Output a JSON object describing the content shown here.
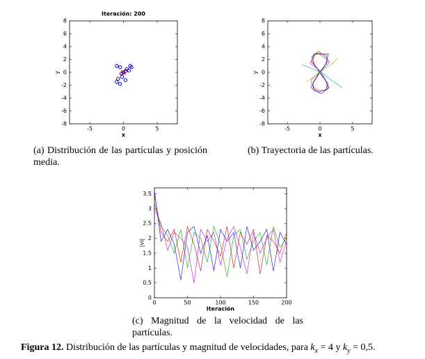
{
  "chart_data": [
    {
      "type": "scatter",
      "title": "Iteración: 200",
      "xlabel": "x",
      "ylabel": "y",
      "xlim": [
        -8,
        8
      ],
      "ylim": [
        -8,
        8
      ],
      "xticks": [
        -5,
        0,
        5
      ],
      "yticks": [
        -8,
        -6,
        -4,
        -2,
        0,
        2,
        4,
        6,
        8
      ],
      "series": [
        {
          "color": "#0000cc",
          "marker": "o",
          "x": [
            -1,
            -0.5,
            1,
            1.2,
            0.5,
            0,
            -0.3,
            0.3,
            -0.8,
            -1,
            -0.5,
            0.3,
            -0.2,
            0.8
          ],
          "values": [
            1,
            0.8,
            1,
            0.8,
            0.5,
            0,
            -0.2,
            0.2,
            -1,
            -1.5,
            -1.8,
            -1.2,
            -0.7,
            0.3
          ]
        },
        {
          "color": "#dd0000",
          "marker": "x",
          "x": [
            0
          ],
          "values": [
            0
          ]
        }
      ]
    },
    {
      "type": "line",
      "xlabel": "x",
      "ylabel": "y",
      "xlim": [
        -8,
        8
      ],
      "ylim": [
        -8,
        8
      ],
      "xticks": [
        -5,
        0,
        5
      ],
      "yticks": [
        -8,
        -6,
        -4,
        -2,
        0,
        2,
        4,
        6,
        8
      ],
      "series": [
        {
          "color": "#dd0000",
          "x": [
            0,
            1.04,
            1.04,
            0,
            -1.04,
            -1.04,
            0,
            1.04,
            1.04,
            0,
            -1.04,
            -1.04,
            0
          ],
          "values": [
            0,
            1.5,
            2.6,
            3,
            2.6,
            1.5,
            0,
            -1.5,
            -2.6,
            -3,
            -2.6,
            -1.5,
            0
          ]
        },
        {
          "color": "#00aa00",
          "x": [
            0.2,
            1.3,
            0.9,
            -0.2,
            -1.3,
            -0.8,
            0.1,
            1.3,
            0.8,
            -0.3,
            -1.2,
            -1.4,
            0.1
          ],
          "values": [
            0.3,
            1.8,
            2.4,
            3.3,
            2.4,
            1.2,
            -0.3,
            -1.8,
            -2.9,
            -2.7,
            -2.2,
            -1.2,
            0.2
          ]
        },
        {
          "color": "#0000dd",
          "x": [
            -0.2,
            0.9,
            1.3,
            0.3,
            -0.9,
            -1.3,
            -0.1,
            0.8,
            1.4,
            0.2,
            -0.9,
            -1.1,
            -0.2
          ],
          "values": [
            -0.2,
            1.3,
            2.9,
            2.8,
            2.9,
            1.7,
            0.2,
            -1.2,
            -2.4,
            -3.3,
            -2.8,
            -1.7,
            -0.1
          ]
        },
        {
          "color": "#cc00cc",
          "x": [
            0.1,
            1.5,
            0.8,
            -0.4,
            -1.1,
            -1.5,
            0.2,
            1.1,
            1.2,
            -0.2,
            -1.4,
            -0.9,
            0
          ],
          "values": [
            0.1,
            1.6,
            2.2,
            3.1,
            2.2,
            1.4,
            0.1,
            -1.7,
            -2.5,
            -3.1,
            -2.4,
            -1.4,
            0
          ]
        },
        {
          "color": "#00aaaa",
          "x": [
            -2.8,
            -1.2,
            0.5,
            1.6,
            3.4
          ],
          "values": [
            1.2,
            0.6,
            -0.2,
            -1.1,
            -2.4
          ]
        },
        {
          "color": "#aaaa00",
          "x": [
            -2.2,
            -0.9,
            0.4,
            1.9,
            2.7
          ],
          "values": [
            -1.5,
            -0.7,
            0.3,
            1.4,
            2.2
          ]
        }
      ]
    },
    {
      "type": "line",
      "xlabel": "Iteración",
      "ylabel": "|vi|",
      "xlim": [
        0,
        200
      ],
      "ylim": [
        0,
        3.7
      ],
      "xticks": [
        0,
        50,
        100,
        150,
        200
      ],
      "yticks": [
        0,
        0.5,
        1,
        1.5,
        2,
        2.5,
        3,
        3.5
      ],
      "x": [
        0,
        10,
        20,
        30,
        40,
        50,
        60,
        70,
        80,
        90,
        100,
        110,
        120,
        130,
        140,
        150,
        160,
        170,
        180,
        190,
        200
      ],
      "series": [
        {
          "color": "#dd0000",
          "values": [
            3.5,
            2.2,
            1.9,
            2.3,
            1.2,
            2.4,
            1.8,
            0.9,
            2.3,
            1.9,
            1.4,
            2.4,
            1.0,
            2.2,
            1.8,
            2.3,
            0.8,
            2.1,
            1.9,
            1.5,
            2.2
          ]
        },
        {
          "color": "#00aa00",
          "values": [
            3.2,
            2.4,
            2.1,
            1.5,
            2.3,
            1.0,
            2.2,
            2.0,
            1.2,
            2.4,
            1.8,
            0.7,
            2.1,
            2.3,
            1.3,
            1.9,
            2.2,
            1.1,
            2.4,
            1.7,
            2.0
          ]
        },
        {
          "color": "#0000dd",
          "values": [
            3.6,
            1.9,
            2.3,
            1.8,
            0.6,
            2.2,
            2.4,
            1.5,
            2.1,
            0.9,
            2.3,
            1.9,
            2.2,
            1.0,
            2.4,
            1.6,
            1.9,
            2.3,
            0.9,
            2.2,
            1.8
          ]
        },
        {
          "color": "#cc00cc",
          "values": [
            3.0,
            2.5,
            1.6,
            2.2,
            2.0,
            1.7,
            0.5,
            2.3,
            1.9,
            2.2,
            1.1,
            2.0,
            2.4,
            1.7,
            0.8,
            2.2,
            1.5,
            2.0,
            2.3,
            1.2,
            1.9
          ]
        }
      ]
    }
  ],
  "subcaptions": [
    "(a) Distribución de las partículas y posición media.",
    "(b) Trayectoria de las partículas.",
    "(c) Magnitud de la velocidad de las partículas."
  ],
  "caption": {
    "label": "Figura 12.",
    "parts": [
      "Distribución de las partículas y magnitud de velocidades, para ",
      "k",
      "x",
      " = 4 y ",
      "k",
      "y",
      " = 0,5."
    ]
  }
}
